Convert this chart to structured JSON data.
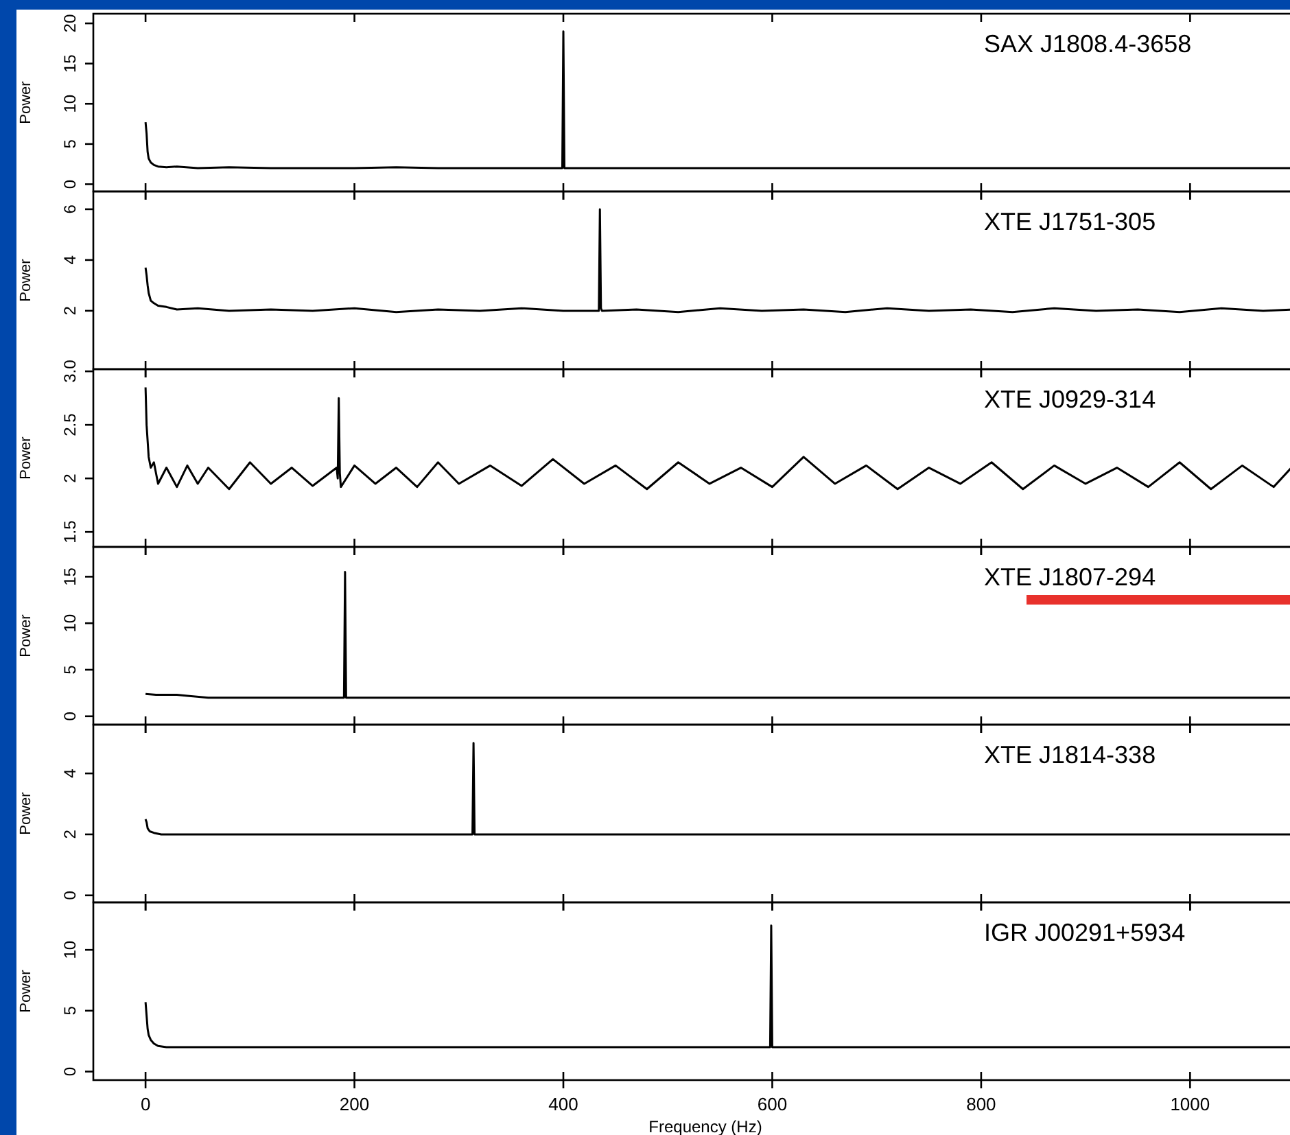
{
  "chart_data": [
    {
      "type": "line",
      "ylabel": "Power",
      "xlim": [
        -50,
        1097
      ],
      "xticks": [
        0,
        200,
        400,
        600,
        800,
        1000
      ],
      "ylim": [
        -0.9,
        21.2
      ],
      "yticks": [
        0,
        5,
        10,
        15,
        20
      ],
      "tick_labels": "y",
      "x": [
        0,
        1,
        2,
        3,
        5,
        8,
        12,
        20,
        30,
        50,
        80,
        120,
        160,
        200,
        240,
        280,
        320,
        360,
        398,
        399,
        400,
        401,
        402,
        440,
        480,
        520,
        560,
        600,
        640,
        680,
        720,
        760,
        800,
        840,
        880,
        920,
        960,
        1000,
        1040,
        1080,
        1097
      ],
      "series": [
        {
          "name": "SAX J1808.4-3658",
          "color": "#000000",
          "values": [
            7.7,
            6.3,
            4,
            3.2,
            2.7,
            2.4,
            2.2,
            2.1,
            2.2,
            2,
            2.1,
            2,
            2,
            2,
            2.1,
            2,
            2,
            2,
            2,
            2,
            19,
            2,
            2,
            2,
            2,
            2,
            2,
            2,
            2,
            2,
            2,
            2,
            2,
            2,
            2,
            2,
            2,
            2,
            2,
            2,
            2
          ]
        }
      ]
    },
    {
      "type": "line",
      "ylabel": "Power",
      "xlim": [
        -50,
        1097
      ],
      "xticks": [
        0,
        200,
        400,
        600,
        800,
        1000
      ],
      "ylim": [
        -0.3,
        6.7
      ],
      "yticks": [
        2,
        4,
        6
      ],
      "tick_labels": "y",
      "x": [
        0,
        1,
        2,
        3,
        5,
        8,
        12,
        20,
        30,
        50,
        80,
        120,
        160,
        200,
        240,
        280,
        320,
        360,
        400,
        433,
        434,
        435,
        436,
        437,
        470,
        510,
        550,
        590,
        630,
        670,
        710,
        750,
        790,
        830,
        870,
        910,
        950,
        990,
        1030,
        1070,
        1097
      ],
      "series": [
        {
          "name": "XTE J1751-305",
          "color": "#000000",
          "values": [
            3.7,
            3.4,
            3,
            2.7,
            2.4,
            2.3,
            2.2,
            2.15,
            2.05,
            2.1,
            2,
            2.05,
            2,
            2.1,
            1.95,
            2.05,
            2,
            2.1,
            2,
            2,
            2,
            6,
            2.1,
            2,
            2.05,
            1.95,
            2.1,
            2,
            2.05,
            1.95,
            2.1,
            2,
            2.05,
            1.95,
            2.1,
            2,
            2.05,
            1.95,
            2.1,
            2,
            2.05
          ]
        }
      ]
    },
    {
      "type": "line",
      "ylabel": "Power",
      "xlim": [
        -50,
        1097
      ],
      "xticks": [
        0,
        200,
        400,
        600,
        800,
        1000
      ],
      "ylim": [
        1.36,
        3.02
      ],
      "yticks": [
        1.5,
        2,
        2.5,
        {
          "value": 3,
          "label": "3.0"
        }
      ],
      "tick_labels": "y",
      "x": [
        0,
        1,
        2,
        3,
        5,
        8,
        12,
        20,
        30,
        40,
        50,
        60,
        80,
        100,
        120,
        140,
        160,
        183,
        184,
        185,
        186,
        187,
        200,
        220,
        240,
        260,
        280,
        300,
        330,
        360,
        390,
        420,
        450,
        480,
        510,
        540,
        570,
        600,
        630,
        660,
        690,
        720,
        750,
        780,
        810,
        840,
        870,
        900,
        930,
        960,
        990,
        1020,
        1050,
        1080,
        1097
      ],
      "series": [
        {
          "name": "XTE J0929-314",
          "color": "#000000",
          "values": [
            2.85,
            2.5,
            2.35,
            2.2,
            2.1,
            2.15,
            1.95,
            2.1,
            1.92,
            2.12,
            1.95,
            2.1,
            1.9,
            2.15,
            1.95,
            2.1,
            1.93,
            2.1,
            2.0,
            2.75,
            2.05,
            1.92,
            2.12,
            1.95,
            2.1,
            1.92,
            2.15,
            1.95,
            2.12,
            1.93,
            2.18,
            1.95,
            2.12,
            1.9,
            2.15,
            1.95,
            2.1,
            1.92,
            2.2,
            1.95,
            2.12,
            1.9,
            2.1,
            1.95,
            2.15,
            1.9,
            2.12,
            1.95,
            2.1,
            1.92,
            2.15,
            1.9,
            2.12,
            1.92,
            2.1
          ]
        }
      ]
    },
    {
      "type": "line",
      "ylabel": "Power",
      "xlim": [
        -50,
        1097
      ],
      "xticks": [
        0,
        200,
        400,
        600,
        800,
        1000
      ],
      "ylim": [
        -0.9,
        18.2
      ],
      "yticks": [
        0,
        5,
        10,
        15
      ],
      "tick_labels": "y",
      "x": [
        0,
        10,
        20,
        30,
        40,
        60,
        100,
        150,
        189,
        190,
        191,
        192,
        193,
        240,
        300,
        360,
        420,
        480,
        540,
        600,
        660,
        720,
        780,
        840,
        900,
        960,
        1020,
        1097
      ],
      "series": [
        {
          "name": "XTE J1807-294",
          "color": "#000000",
          "values": [
            2.4,
            2.3,
            2.3,
            2.3,
            2.2,
            2,
            2,
            2,
            2,
            2,
            15.5,
            2,
            2,
            2,
            2,
            2,
            2,
            2,
            2,
            2,
            2,
            2,
            2,
            2,
            2,
            2,
            2,
            2
          ]
        }
      ]
    },
    {
      "type": "line",
      "ylabel": "Power",
      "xlim": [
        -50,
        1097
      ],
      "xticks": [
        0,
        200,
        400,
        600,
        800,
        1000
      ],
      "ylim": [
        -0.23,
        5.6
      ],
      "yticks": [
        0,
        2,
        4
      ],
      "tick_labels": "y",
      "x": [
        0,
        1,
        2,
        4,
        8,
        15,
        30,
        60,
        100,
        150,
        200,
        250,
        300,
        312,
        313,
        314,
        315,
        316,
        360,
        420,
        480,
        540,
        600,
        660,
        720,
        780,
        840,
        900,
        960,
        1020,
        1097
      ],
      "series": [
        {
          "name": "XTE J1814-338",
          "color": "#000000",
          "values": [
            2.5,
            2.4,
            2.2,
            2.1,
            2.05,
            2,
            2,
            2,
            2,
            2,
            2,
            2,
            2,
            2,
            2,
            5,
            2,
            2,
            2,
            2,
            2,
            2,
            2,
            2,
            2,
            2,
            2,
            2,
            2,
            2,
            2
          ]
        }
      ]
    },
    {
      "type": "line",
      "ylabel": "Power",
      "xlabel": "Frequency (Hz)",
      "xlim": [
        -50,
        1097
      ],
      "xticks": [
        0,
        200,
        400,
        600,
        800,
        1000
      ],
      "ylim": [
        -0.7,
        13.9
      ],
      "yticks": [
        0,
        5,
        10
      ],
      "x": [
        0,
        1,
        2,
        3,
        5,
        8,
        12,
        20,
        40,
        80,
        150,
        250,
        350,
        450,
        550,
        597,
        598,
        599,
        600,
        601,
        650,
        700,
        760,
        820,
        880,
        940,
        1000,
        1060,
        1097
      ],
      "series": [
        {
          "name": "IGR J00291+5934",
          "color": "#000000",
          "values": [
            5.7,
            4.6,
            3.5,
            3,
            2.6,
            2.3,
            2.1,
            2,
            2,
            2,
            2,
            2,
            2,
            2,
            2,
            2,
            2,
            12,
            2,
            2,
            2,
            2,
            2,
            2,
            2,
            2,
            2,
            2,
            2
          ]
        }
      ]
    }
  ]
}
